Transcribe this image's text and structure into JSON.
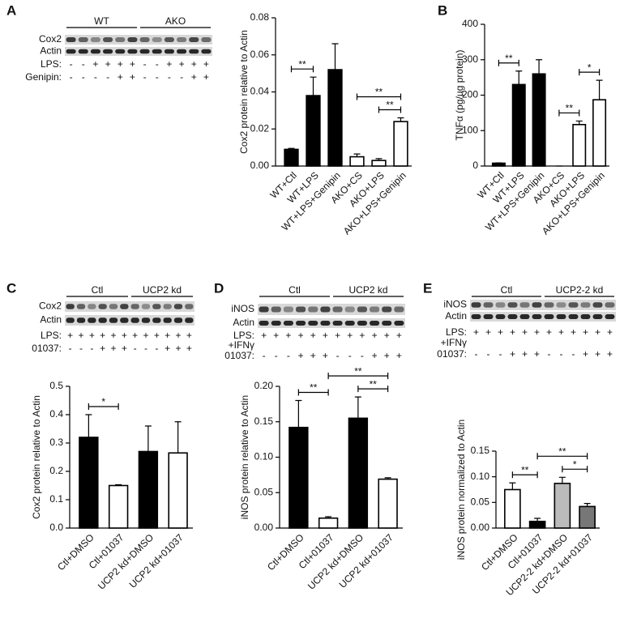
{
  "panel_letters": [
    "A",
    "B",
    "C",
    "D",
    "E"
  ],
  "blots": [
    {
      "groups": [
        "WT",
        "AKO"
      ],
      "bands": [
        "Cox2",
        "Actin"
      ],
      "rows": [
        {
          "label": "LPS:",
          "signs": [
            "-",
            "-",
            "+",
            "+",
            "+",
            "+",
            "-",
            "-",
            "+",
            "+",
            "+",
            "+"
          ]
        },
        {
          "label": "Genipin:",
          "signs": [
            "-",
            "-",
            "-",
            "-",
            "+",
            "+",
            "-",
            "-",
            "-",
            "-",
            "+",
            "+"
          ]
        }
      ]
    },
    {
      "groups": [
        "Ctl",
        "UCP2 kd"
      ],
      "bands": [
        "Cox2",
        "Actin"
      ],
      "rows": [
        {
          "label": "LPS:",
          "signs": [
            "+",
            "+",
            "+",
            "+",
            "+",
            "+",
            "+",
            "+",
            "+",
            "+",
            "+",
            "+"
          ]
        },
        {
          "label": "01037:",
          "signs": [
            "-",
            "-",
            "-",
            "+",
            "+",
            "+",
            "-",
            "-",
            "-",
            "+",
            "+",
            "+"
          ]
        }
      ]
    },
    {
      "groups": [
        "Ctl",
        "UCP2 kd"
      ],
      "bands": [
        "iNOS",
        "Actin"
      ],
      "rows": [
        {
          "label": "LPS:",
          "signs": [
            "+",
            "+",
            "+",
            "+",
            "+",
            "+",
            "+",
            "+",
            "+",
            "+",
            "+",
            "+"
          ]
        },
        {
          "label": "+IFNγ"
        },
        {
          "label": "01037:",
          "signs": [
            "-",
            "-",
            "-",
            "+",
            "+",
            "+",
            "-",
            "-",
            "-",
            "+",
            "+",
            "+"
          ]
        }
      ]
    },
    {
      "groups": [
        "Ctl",
        "UCP2-2 kd"
      ],
      "bands": [
        "iNOS",
        "Actin"
      ],
      "rows": [
        {
          "label": "LPS:",
          "signs": [
            "+",
            "+",
            "+",
            "+",
            "+",
            "+",
            "+",
            "+",
            "+",
            "+",
            "+",
            "+"
          ]
        },
        {
          "label": "+IFNγ"
        },
        {
          "label": "01037:",
          "signs": [
            "-",
            "-",
            "-",
            "+",
            "+",
            "+",
            "-",
            "-",
            "-",
            "+",
            "+",
            "+"
          ]
        }
      ]
    }
  ],
  "chart_data": [
    {
      "type": "bar",
      "y_label": "Cox2 protein relative to Actin",
      "categories": [
        "WT+Ctl",
        "WT+LPS",
        "WT+LPS+Genipin",
        "AKO+CS",
        "AKO+LPS",
        "AKO+LPS+Genipin"
      ],
      "values": [
        0.009,
        0.038,
        0.052,
        0.005,
        0.003,
        0.024
      ],
      "errors": [
        0.0005,
        0.01,
        0.014,
        0.0015,
        0.001,
        0.002
      ],
      "colors": [
        "#000000",
        "#000000",
        "#000000",
        "#ffffff",
        "#ffffff",
        "#ffffff"
      ],
      "ylim": [
        0,
        0.08
      ],
      "yticks": [
        {
          "value": 0,
          "label": "0.00"
        },
        0.02,
        0.04,
        0.06,
        0.08
      ],
      "annotations": [
        {
          "from": 0,
          "to": 1,
          "text": "**"
        },
        {
          "from": 4,
          "to": 5,
          "text": "**"
        },
        {
          "from": 3,
          "to": 5,
          "text": "**"
        }
      ]
    },
    {
      "type": "bar",
      "y_label": "TNFα (pg/µg protein)",
      "categories": [
        "WT+Ctl",
        "WT+LPS",
        "WT+LPS+Genipin",
        "AKO+CS",
        "AKO+LPS",
        "AKO+LPS+Genipin"
      ],
      "values": [
        8,
        230,
        260,
        0,
        117,
        187
      ],
      "errors": [
        1,
        38,
        40,
        0,
        10,
        55
      ],
      "colors": [
        "#000000",
        "#000000",
        "#000000",
        "#ffffff",
        "#ffffff",
        "#ffffff"
      ],
      "ylim": [
        0,
        400
      ],
      "yticks": [
        0,
        100,
        200,
        300,
        400
      ],
      "annotations": [
        {
          "from": 0,
          "to": 1,
          "text": "**"
        },
        {
          "from": 3,
          "to": 4,
          "text": "**"
        },
        {
          "from": 4,
          "to": 5,
          "text": "*"
        }
      ]
    },
    {
      "type": "bar",
      "y_label": "Cox2 protein relative to Actin",
      "categories": [
        "Ctl+DMSO",
        "Ctl+01037",
        "UCP2 kd+DMSO",
        "UCP2 kd+01037"
      ],
      "values": [
        0.32,
        0.15,
        0.27,
        0.265
      ],
      "errors": [
        0.08,
        0.003,
        0.09,
        0.11
      ],
      "colors": [
        "#000000",
        "#ffffff",
        "#000000",
        "#ffffff"
      ],
      "ylim": [
        0,
        0.5
      ],
      "yticks": [
        {
          "value": 0,
          "label": "0.0"
        },
        0.1,
        0.2,
        0.3,
        0.4,
        0.5
      ],
      "annotations": [
        {
          "from": 0,
          "to": 1,
          "text": "*"
        }
      ]
    },
    {
      "type": "bar",
      "y_label": "iNOS protein relative to Actin",
      "categories": [
        "Ctl+DMSO",
        "Ctl+01037",
        "UCP2 kd+DMSO",
        "UCP2 kd+01037"
      ],
      "values": [
        0.142,
        0.014,
        0.155,
        0.069
      ],
      "errors": [
        0.038,
        0.002,
        0.03,
        0.002
      ],
      "colors": [
        "#000000",
        "#ffffff",
        "#000000",
        "#ffffff"
      ],
      "ylim": [
        0,
        0.2
      ],
      "yticks": [
        {
          "value": 0,
          "label": "0.00"
        },
        0.05,
        {
          "value": 0.1,
          "label": "0.10"
        },
        0.15,
        {
          "value": 0.2,
          "label": "0.20"
        }
      ],
      "annotations": [
        {
          "from": 0,
          "to": 1,
          "text": "**"
        },
        {
          "from": 2,
          "to": 3,
          "text": "**"
        },
        {
          "from": 1,
          "to": 3,
          "text": "**"
        }
      ]
    },
    {
      "type": "bar",
      "y_label": "iNOS protein normalized to Actin",
      "categories": [
        "Ctl+DMSO",
        "Ctl+01037",
        "UCP2-2 kd+DMSO",
        "UCP2-2 kd+01037"
      ],
      "values": [
        0.075,
        0.013,
        0.087,
        0.042
      ],
      "errors": [
        0.013,
        0.006,
        0.012,
        0.006
      ],
      "colors": [
        "#ffffff",
        "#000000",
        "#bbbbbb",
        "#777777"
      ],
      "ylim": [
        0,
        0.15
      ],
      "yticks": [
        {
          "value": 0,
          "label": "0.00"
        },
        0.05,
        {
          "value": 0.1,
          "label": "0.10"
        },
        0.15
      ],
      "annotations": [
        {
          "from": 0,
          "to": 1,
          "text": "**"
        },
        {
          "from": 2,
          "to": 3,
          "text": "*"
        },
        {
          "from": 1,
          "to": 3,
          "text": "**"
        }
      ]
    }
  ]
}
